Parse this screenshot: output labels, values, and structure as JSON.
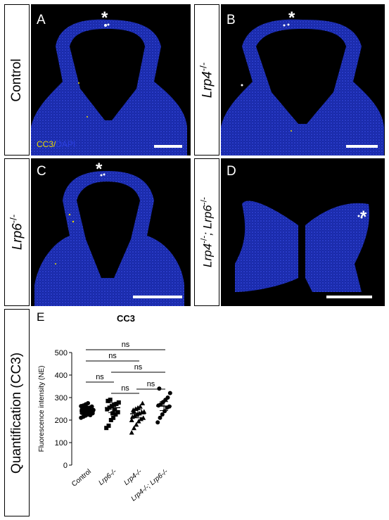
{
  "rows": [
    {
      "label_prefix": "",
      "label_italic": "Control",
      "label_sup": "",
      "label_suffix": "",
      "italic": false
    },
    {
      "label_prefix": "",
      "label_italic": "Lrp4",
      "label_sup": "-/-",
      "label_suffix": "",
      "italic": true
    },
    {
      "label_prefix": "",
      "label_italic": "Lrp6",
      "label_sup": "-/-",
      "label_suffix": "",
      "italic": true
    },
    {
      "label_prefix": "",
      "label_italic": "Lrp4",
      "label_sup": "-/-",
      "label_suffix": "; Lrp6-/-",
      "italic": true
    }
  ],
  "panels": {
    "a": {
      "letter": "A",
      "asterisk": "*"
    },
    "b": {
      "letter": "B",
      "asterisk": "*"
    },
    "c": {
      "letter": "C",
      "asterisk": "*"
    },
    "d": {
      "letter": "D",
      "asterisk": "*"
    }
  },
  "stain": {
    "cc3": "CC3",
    "sep": "/",
    "dapi": "DAPI"
  },
  "colors": {
    "cc3": "#e8d800",
    "dapi": "#2b3fe0"
  },
  "quant_label": "Quantification (CC3)",
  "panel_e": "E",
  "chart_data": {
    "type": "scatter",
    "title": "CC3",
    "ylabel": "Fluorescence intensity (NE)",
    "ylim": [
      0,
      500
    ],
    "yticks": [
      0,
      100,
      200,
      300,
      400,
      500
    ],
    "categories": [
      "Control",
      "Lrp6-/-",
      "Lrp4-/-",
      "Lrp4-/-; Lrp6-/-"
    ],
    "markers": [
      "circle",
      "square",
      "triangle",
      "circle"
    ],
    "means": [
      240,
      255,
      228,
      262
    ],
    "sem": [
      12,
      22,
      18,
      20
    ],
    "points": [
      [
        210,
        215,
        220,
        225,
        228,
        230,
        232,
        235,
        238,
        240,
        242,
        245,
        248,
        250,
        252,
        255,
        260,
        262,
        265,
        270,
        275,
        222,
        236,
        246,
        218,
        258
      ],
      [
        165,
        175,
        200,
        210,
        225,
        235,
        248,
        255,
        262,
        268,
        272,
        278,
        285,
        290,
        230,
        245
      ],
      [
        145,
        165,
        180,
        195,
        205,
        210,
        215,
        220,
        225,
        230,
        235,
        238,
        245,
        250,
        255,
        260,
        275,
        200,
        240
      ],
      [
        190,
        210,
        225,
        240,
        255,
        260,
        265,
        270,
        280,
        290,
        300,
        320,
        340
      ]
    ],
    "significance": [
      {
        "pair": [
          0,
          3
        ],
        "label": "ns",
        "level": 1
      },
      {
        "pair": [
          0,
          2
        ],
        "label": "ns",
        "level": 2
      },
      {
        "pair": [
          0,
          1
        ],
        "label": "ns",
        "level": 3
      },
      {
        "pair": [
          1,
          3
        ],
        "label": "ns",
        "level": 4
      },
      {
        "pair": [
          1,
          2
        ],
        "label": "ns",
        "level": 5
      },
      {
        "pair": [
          2,
          3
        ],
        "label": "ns",
        "level": 6
      }
    ]
  }
}
